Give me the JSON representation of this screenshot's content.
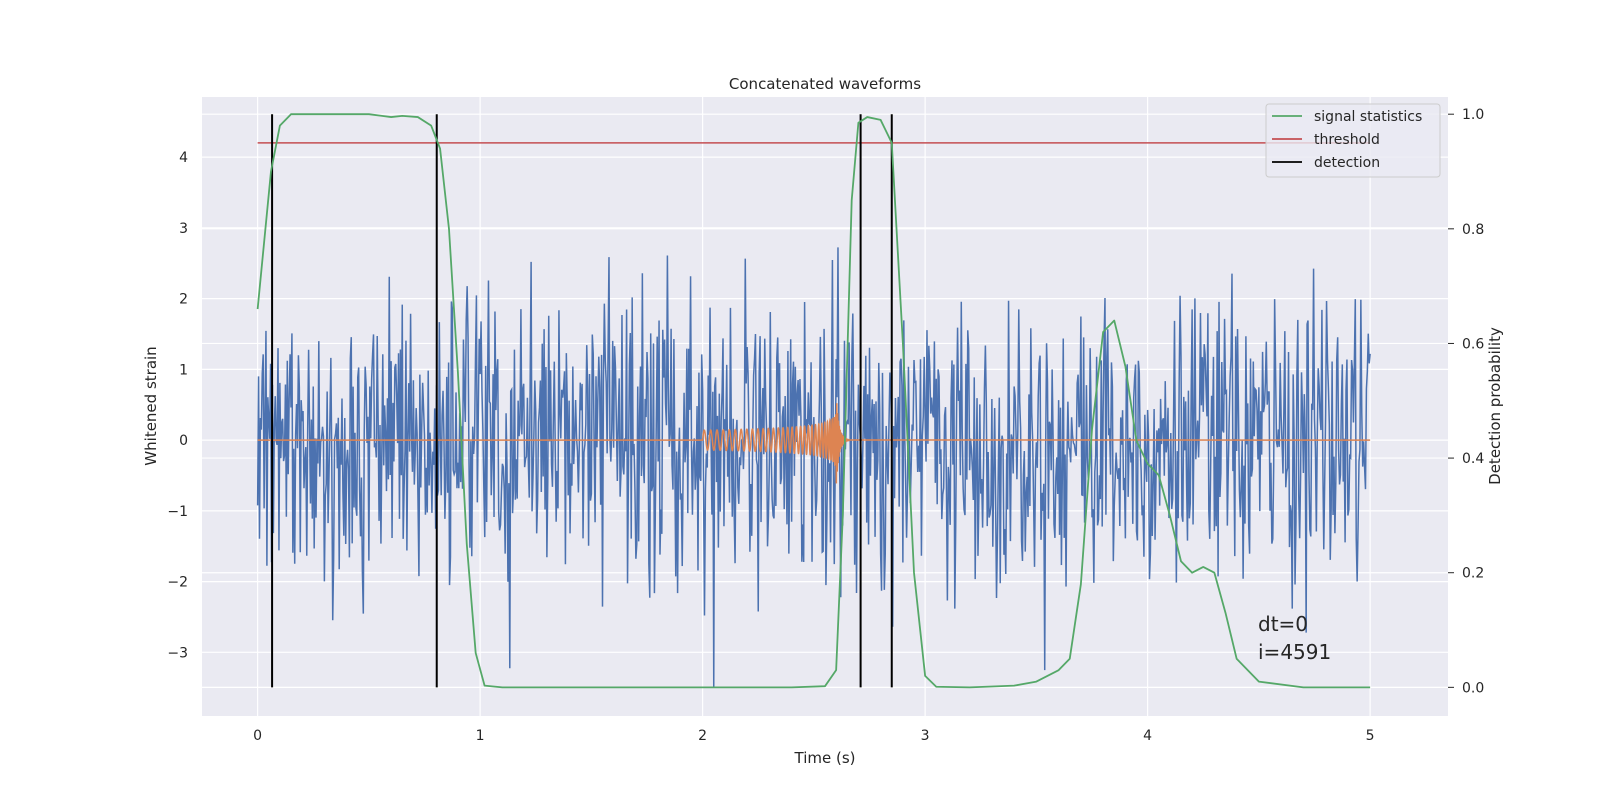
{
  "chart_data": {
    "type": "line",
    "title": "Concatenated waveforms",
    "xlabel": "Time (s)",
    "ylabel_left": "Whitened strain",
    "ylabel_right": "Detection probability",
    "xlim": [
      -0.25,
      5.35
    ],
    "ylim_left": [
      -3.9,
      4.85
    ],
    "ylim_right": [
      -0.05,
      1.03
    ],
    "x_ticks": [
      0,
      1,
      2,
      3,
      4,
      5
    ],
    "x_tick_labels": [
      "0",
      "1",
      "2",
      "3",
      "4",
      "5"
    ],
    "y_left_ticks": [
      -3,
      -2,
      -1,
      0,
      1,
      2,
      3,
      4
    ],
    "y_left_tick_labels": [
      "−3",
      "−2",
      "−1",
      "0",
      "1",
      "2",
      "3",
      "4"
    ],
    "y_right_ticks": [
      0.0,
      0.2,
      0.4,
      0.6,
      0.8,
      1.0
    ],
    "y_right_tick_labels": [
      "0.0",
      "0.2",
      "0.4",
      "0.6",
      "0.8",
      "1.0"
    ],
    "grid": true,
    "legend_position": "top-right",
    "legend": [
      {
        "label": "signal statistics",
        "color": "#55a868"
      },
      {
        "label": "threshold",
        "color": "#c44e52"
      },
      {
        "label": "detection",
        "color": "#000000"
      }
    ],
    "series": [
      {
        "name": "signal statistics",
        "axis": "right",
        "color": "#55a868",
        "x": [
          0.0,
          0.03,
          0.06,
          0.1,
          0.15,
          0.25,
          0.5,
          0.6,
          0.65,
          0.72,
          0.78,
          0.82,
          0.86,
          0.9,
          0.94,
          0.98,
          1.02,
          1.1,
          1.5,
          2.0,
          2.4,
          2.55,
          2.6,
          2.63,
          2.67,
          2.7,
          2.74,
          2.8,
          2.85,
          2.9,
          2.95,
          3.0,
          3.05,
          3.2,
          3.4,
          3.5,
          3.6,
          3.65,
          3.7,
          3.75,
          3.8,
          3.85,
          3.9,
          3.95,
          4.0,
          4.05,
          4.1,
          4.15,
          4.2,
          4.25,
          4.3,
          4.35,
          4.4,
          4.5,
          4.7,
          5.0
        ],
        "y": [
          0.66,
          0.78,
          0.9,
          0.98,
          1.0,
          1.0,
          1.0,
          0.995,
          0.997,
          0.995,
          0.98,
          0.94,
          0.8,
          0.55,
          0.25,
          0.06,
          0.003,
          0.0,
          0.0,
          0.0,
          0.0,
          0.002,
          0.03,
          0.3,
          0.85,
          0.985,
          0.995,
          0.99,
          0.95,
          0.6,
          0.2,
          0.02,
          0.001,
          0.0,
          0.003,
          0.01,
          0.03,
          0.05,
          0.18,
          0.45,
          0.62,
          0.64,
          0.56,
          0.43,
          0.39,
          0.37,
          0.3,
          0.22,
          0.2,
          0.21,
          0.2,
          0.13,
          0.05,
          0.01,
          0.0,
          0.0
        ]
      },
      {
        "name": "threshold",
        "axis": "right",
        "color": "#c44e52",
        "x": [
          0.0,
          5.0
        ],
        "y": [
          0.95,
          0.95
        ]
      },
      {
        "name": "detection",
        "axis": "right",
        "color": "#000000",
        "type": "vlines",
        "x": [
          0.065,
          0.805,
          2.71,
          2.85
        ],
        "ymin": 0.0,
        "ymax": 1.0
      },
      {
        "name": "whitened strain",
        "axis": "left",
        "color": "#4c72b0",
        "type": "noise",
        "x_range": [
          0.0,
          5.0
        ],
        "sigma": 1.0,
        "points": 1200
      },
      {
        "name": "injected waveform",
        "axis": "left",
        "color": "#dd8452",
        "type": "chirp",
        "x_start": 2.0,
        "x_merger": 2.6,
        "x_end": 5.0,
        "amplitude_start": 0.14,
        "amplitude_peak": 0.68
      }
    ],
    "annotations": [
      "dt=0",
      "i=4591"
    ]
  }
}
